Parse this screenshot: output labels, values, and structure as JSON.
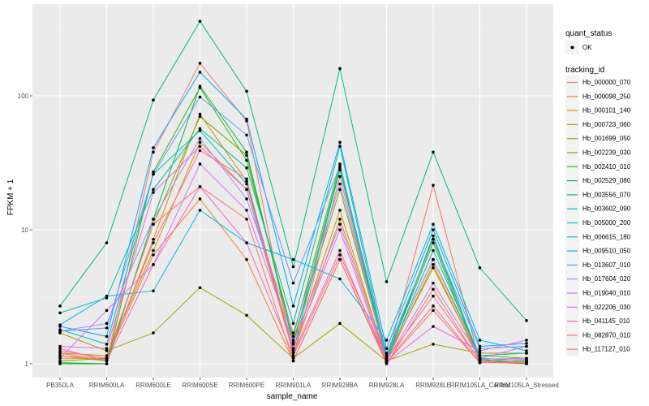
{
  "chart_data": {
    "type": "line",
    "title": "",
    "xlabel": "sample_name",
    "ylabel": "FPKM + 1",
    "yscale": "log10",
    "ylim": [
      0.9,
      420
    ],
    "y_ticks": [
      1,
      10,
      100
    ],
    "y_tick_labels": [
      "1",
      "10",
      "100"
    ],
    "grid": true,
    "legend_position": "right",
    "categories": [
      "PB350LA",
      "RRIM600LA",
      "RRIM600LE",
      "RRIM600SE",
      "RRIM600PE",
      "RRIM901LA",
      "RRIM928BA",
      "RRIM928LA",
      "RRIM928LE",
      "RRIM105LA_Control",
      "RRIM105LA_Stressed"
    ],
    "shape_legend": {
      "title": "quant_status",
      "entries": [
        "OK"
      ]
    },
    "color_legend_title": "tracking_id",
    "series": [
      {
        "name": "Hb_000000_070",
        "color": "#F8766D",
        "values": [
          1.2,
          1.05,
          38,
          175,
          65,
          1.1,
          25,
          1.05,
          21.5,
          1.02,
          1.02
        ]
      },
      {
        "name": "Hb_000098_250",
        "color": "#EA8331",
        "values": [
          1.1,
          1.1,
          6.5,
          17,
          6,
          1.05,
          6,
          1.0,
          3.6,
          1.03,
          1.0
        ]
      },
      {
        "name": "Hb_000101_140",
        "color": "#D89000",
        "values": [
          1.15,
          1.05,
          8.5,
          73,
          23,
          1.3,
          14,
          1.05,
          5.5,
          1.05,
          1.03
        ]
      },
      {
        "name": "Hb_000723_060",
        "color": "#C09B00",
        "values": [
          1.2,
          1.15,
          7,
          45,
          20,
          1.2,
          12,
          1.1,
          5.2,
          1.1,
          1.05
        ]
      },
      {
        "name": "Hb_001699_050",
        "color": "#A3A500",
        "values": [
          1.7,
          1.25,
          1.7,
          3.7,
          2.3,
          1.1,
          2.0,
          1.05,
          1.4,
          1.2,
          1.2
        ]
      },
      {
        "name": "Hb_002239_030",
        "color": "#7CAE00",
        "values": [
          1.05,
          1.1,
          11,
          70,
          36,
          1.5,
          20,
          1.1,
          6,
          1.15,
          1.1
        ]
      },
      {
        "name": "Hb_002410_010",
        "color": "#39B600",
        "values": [
          1.0,
          1.0,
          27,
          115,
          33,
          1.6,
          31,
          1.1,
          8,
          1.05,
          1.02
        ]
      },
      {
        "name": "Hb_002529_080",
        "color": "#00BB4E",
        "values": [
          1.02,
          1.0,
          12,
          118,
          38,
          1.4,
          29,
          1.05,
          9,
          1.08,
          1.0
        ]
      },
      {
        "name": "Hb_003556_070",
        "color": "#00BF7D",
        "values": [
          2.7,
          8,
          93,
          360,
          108,
          5.3,
          160,
          4.1,
          38,
          5.2,
          2.1
        ]
      },
      {
        "name": "Hb_003602_090",
        "color": "#00C1A3",
        "values": [
          2.4,
          3.1,
          20,
          57,
          29,
          2.0,
          42,
          1.15,
          8.5,
          1.1,
          1.05
        ]
      },
      {
        "name": "Hb_005000_200",
        "color": "#00BFC4",
        "values": [
          1.8,
          1.4,
          26,
          55,
          22,
          1.25,
          28,
          1.05,
          7,
          1.15,
          1.2
        ]
      },
      {
        "name": "Hb_006615_180",
        "color": "#00B9E3",
        "values": [
          1.95,
          3.2,
          3.5,
          14,
          8,
          6,
          4.3,
          1.5,
          11,
          1.5,
          1.25
        ]
      },
      {
        "name": "Hb_009510_050",
        "color": "#00ADFA",
        "values": [
          1.9,
          1.6,
          41,
          150,
          67,
          2.7,
          45,
          1.3,
          10,
          1.35,
          1.42
        ]
      },
      {
        "name": "Hb_013607_010",
        "color": "#619CFF",
        "values": [
          1.75,
          1.85,
          26,
          98,
          51,
          4,
          30,
          1.2,
          8.5,
          1.3,
          1.35
        ]
      },
      {
        "name": "Hb_017604_020",
        "color": "#AE87FF",
        "values": [
          1.75,
          2.0,
          12,
          48,
          17,
          1.7,
          22,
          1.1,
          6,
          1.08,
          1.1
        ]
      },
      {
        "name": "Hb_019040_010",
        "color": "#DB72FB",
        "values": [
          1.1,
          2.5,
          5.5,
          31,
          14,
          1.45,
          11,
          1.05,
          4,
          1.1,
          1.35
        ]
      },
      {
        "name": "Hb_022206_030",
        "color": "#F564E3",
        "values": [
          1.35,
          1.3,
          19,
          42,
          20,
          1.3,
          10,
          1.02,
          1.9,
          1.25,
          1.5
        ]
      },
      {
        "name": "Hb_041145_010",
        "color": "#FF61C3",
        "values": [
          1.3,
          1.05,
          5.5,
          21,
          8,
          1.15,
          6.5,
          1.08,
          3.2,
          1.05,
          1.08
        ]
      },
      {
        "name": "Hb_082870_010",
        "color": "#FF6C91",
        "values": [
          1.25,
          1.1,
          8,
          39,
          24,
          1.2,
          7,
          1.02,
          2.5,
          1.02,
          1.02
        ]
      },
      {
        "name": "Hb_117127_010",
        "color": "#F8766D",
        "values": [
          1.15,
          1.08,
          11,
          21,
          12,
          1.05,
          6,
          1.03,
          2.7,
          1.02,
          1.02
        ]
      }
    ]
  }
}
